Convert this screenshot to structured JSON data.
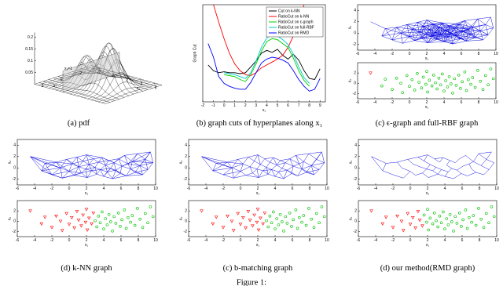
{
  "points": {
    "x": [
      -4.5,
      -3.2,
      -2.8,
      -2.0,
      -1.5,
      -1.0,
      -0.8,
      -0.3,
      0.0,
      0.3,
      0.6,
      0.9,
      1.1,
      1.4,
      1.6,
      1.9,
      2.1,
      2.3,
      2.6,
      2.8,
      3.0,
      3.2,
      3.4,
      3.6,
      3.8,
      4.0,
      4.2,
      4.4,
      4.6,
      4.8,
      5.0,
      5.2,
      5.4,
      5.7,
      5.9,
      6.1,
      6.4,
      6.6,
      6.8,
      7.1,
      7.3,
      7.6,
      7.9,
      8.2,
      8.5,
      8.8,
      9.1,
      9.4,
      9.7,
      2.0
    ],
    "y": [
      2.0,
      -0.5,
      0.8,
      -1.2,
      1.0,
      0.0,
      -1.8,
      1.5,
      -0.6,
      0.7,
      -1.3,
      1.9,
      0.2,
      -0.9,
      1.2,
      -0.2,
      -1.7,
      0.6,
      -0.5,
      1.6,
      0.1,
      -1.1,
      1.0,
      -0.3,
      1.8,
      -1.5,
      0.5,
      -0.7,
      1.3,
      -0.1,
      -1.9,
      0.9,
      -0.4,
      1.6,
      -1.0,
      0.3,
      2.2,
      -1.4,
      0.7,
      -0.2,
      1.1,
      -0.8,
      2.5,
      0.4,
      -1.2,
      1.5,
      -0.3,
      2.8,
      0.9,
      2.3
    ]
  },
  "axes": {
    "xlim": [
      -6,
      10
    ],
    "xticks": [
      -6,
      -4,
      -2,
      0,
      2,
      4,
      6,
      8,
      10
    ],
    "graph_ylim": [
      -3,
      5
    ],
    "graph_yticks": [
      -2,
      0,
      2,
      4
    ],
    "scatter_ylim": [
      -3,
      4
    ],
    "scatter_yticks": [
      -2,
      0,
      2
    ],
    "x_label": "x₁",
    "y_label": "x₂",
    "class_colors": [
      "#ff0000",
      "#00c000"
    ],
    "graph_color": "#0000e0"
  },
  "panels": [
    {
      "label": "(a)",
      "caption": "pdf",
      "z_ticks": [
        0.2,
        0.15,
        0.1,
        0.05
      ],
      "x1_ticks": [
        -2,
        0,
        2,
        4,
        6
      ],
      "x2_ticks": [
        2,
        0,
        -2
      ],
      "x1_label": "x₁",
      "x2_label": "x₂",
      "annotation": "x₁=1"
    },
    {
      "label": "(b)",
      "caption": "graph cuts of hyperplanes along x₁",
      "chart": {
        "type": "line",
        "y_label": "Graph Cut",
        "x_label": "x₁",
        "x": [
          -1.5,
          -1,
          -0.5,
          0,
          0.5,
          1,
          1.5,
          2,
          2.5,
          3,
          3.5,
          4,
          4.5,
          5,
          5.5,
          6,
          6.5,
          7,
          7.5,
          8,
          8.5,
          9
        ],
        "xlim": [
          -2,
          9.5
        ],
        "ylim": [
          0,
          10
        ],
        "xticks": [
          -2,
          -1,
          0,
          1,
          2,
          3,
          4,
          5,
          6,
          7,
          8,
          9
        ],
        "legend": "upper right",
        "series": [
          {
            "name": "Cut on k-NN",
            "color": "#000000",
            "values": [
              3.8,
              3.2,
              3.0,
              3.1,
              3.0,
              3.0,
              2.9,
              3.0,
              3.6,
              4.2,
              5.0,
              5.3,
              5.1,
              5.4,
              4.8,
              4.4,
              4.9,
              4.3,
              3.2,
              2.4,
              2.3,
              3.4
            ]
          },
          {
            "name": "RatioCut on k-NN",
            "color": "#ff0000",
            "values": [
              null,
              10,
              8.2,
              6.5,
              5.0,
              3.9,
              3.2,
              2.8,
              2.7,
              3.0,
              3.5,
              3.8,
              4.1,
              4.4,
              4.8,
              5.6,
              6.8,
              8.5,
              10,
              null,
              null,
              null
            ]
          },
          {
            "name": "RatioCut on ε-graph",
            "color": "#00d000",
            "values": [
              null,
              null,
              null,
              2.8,
              2.7,
              2.6,
              2.3,
              2.1,
              2.8,
              3.9,
              5.2,
              6.2,
              6.5,
              6.4,
              6.0,
              5.6,
              4.5,
              3.2,
              2.2,
              1.6,
              null,
              null
            ]
          },
          {
            "name": "RatioCut on full-RBF",
            "color": "#00c8c8",
            "values": [
              null,
              null,
              null,
              3.0,
              2.9,
              2.8,
              2.6,
              2.4,
              3.0,
              4.2,
              5.6,
              6.6,
              6.9,
              6.8,
              6.4,
              5.9,
              4.9,
              3.6,
              2.5,
              1.9,
              null,
              null
            ]
          },
          {
            "name": "RatioCut on RMD",
            "color": "#0000ff",
            "values": [
              6.0,
              4.6,
              2.6,
              1.9,
              1.6,
              1.4,
              1.3,
              1.3,
              2.0,
              3.0,
              4.0,
              4.4,
              4.6,
              4.5,
              4.3,
              4.0,
              3.2,
              2.3,
              1.6,
              1.1,
              1.3,
              2.4
            ]
          }
        ]
      }
    },
    {
      "label": "(c)",
      "caption": "ϵ-graph and full-RBF graph",
      "clusters": [
        0,
        1,
        1,
        1,
        1,
        1,
        1,
        1,
        1,
        1,
        1,
        1,
        1,
        1,
        1,
        1,
        1,
        1,
        1,
        1,
        1,
        1,
        1,
        1,
        1,
        1,
        1,
        1,
        1,
        1,
        1,
        1,
        1,
        1,
        1,
        1,
        1,
        1,
        1,
        1,
        1,
        1,
        1,
        1,
        1,
        1,
        1,
        1,
        1,
        1
      ]
    },
    {
      "label": "(d)",
      "caption": "k-NN graph",
      "clusters": [
        0,
        0,
        0,
        0,
        0,
        0,
        0,
        0,
        0,
        0,
        0,
        0,
        0,
        0,
        0,
        0,
        0,
        0,
        0,
        0,
        1,
        1,
        1,
        1,
        1,
        1,
        1,
        1,
        1,
        1,
        1,
        1,
        1,
        1,
        1,
        1,
        1,
        1,
        1,
        1,
        1,
        1,
        1,
        1,
        1,
        1,
        1,
        1,
        1,
        0
      ]
    },
    {
      "label": "(c)",
      "caption": "b-matching graph",
      "clusters": [
        0,
        0,
        0,
        0,
        0,
        0,
        0,
        0,
        0,
        0,
        0,
        0,
        0,
        0,
        0,
        0,
        0,
        0,
        0,
        0,
        1,
        1,
        1,
        1,
        1,
        1,
        1,
        1,
        1,
        1,
        1,
        1,
        1,
        1,
        1,
        1,
        1,
        1,
        1,
        1,
        1,
        1,
        1,
        1,
        1,
        1,
        1,
        1,
        1,
        0
      ]
    },
    {
      "label": "(d)",
      "caption": "our method(RMD graph)",
      "clusters": [
        0,
        0,
        0,
        0,
        0,
        0,
        0,
        0,
        0,
        0,
        0,
        0,
        0,
        0,
        1,
        1,
        1,
        1,
        1,
        1,
        1,
        1,
        1,
        1,
        1,
        1,
        1,
        1,
        1,
        1,
        1,
        1,
        1,
        1,
        1,
        1,
        1,
        1,
        1,
        1,
        1,
        1,
        1,
        1,
        1,
        1,
        1,
        1,
        1,
        1
      ]
    }
  ],
  "figure_caption": "Figure 1:"
}
